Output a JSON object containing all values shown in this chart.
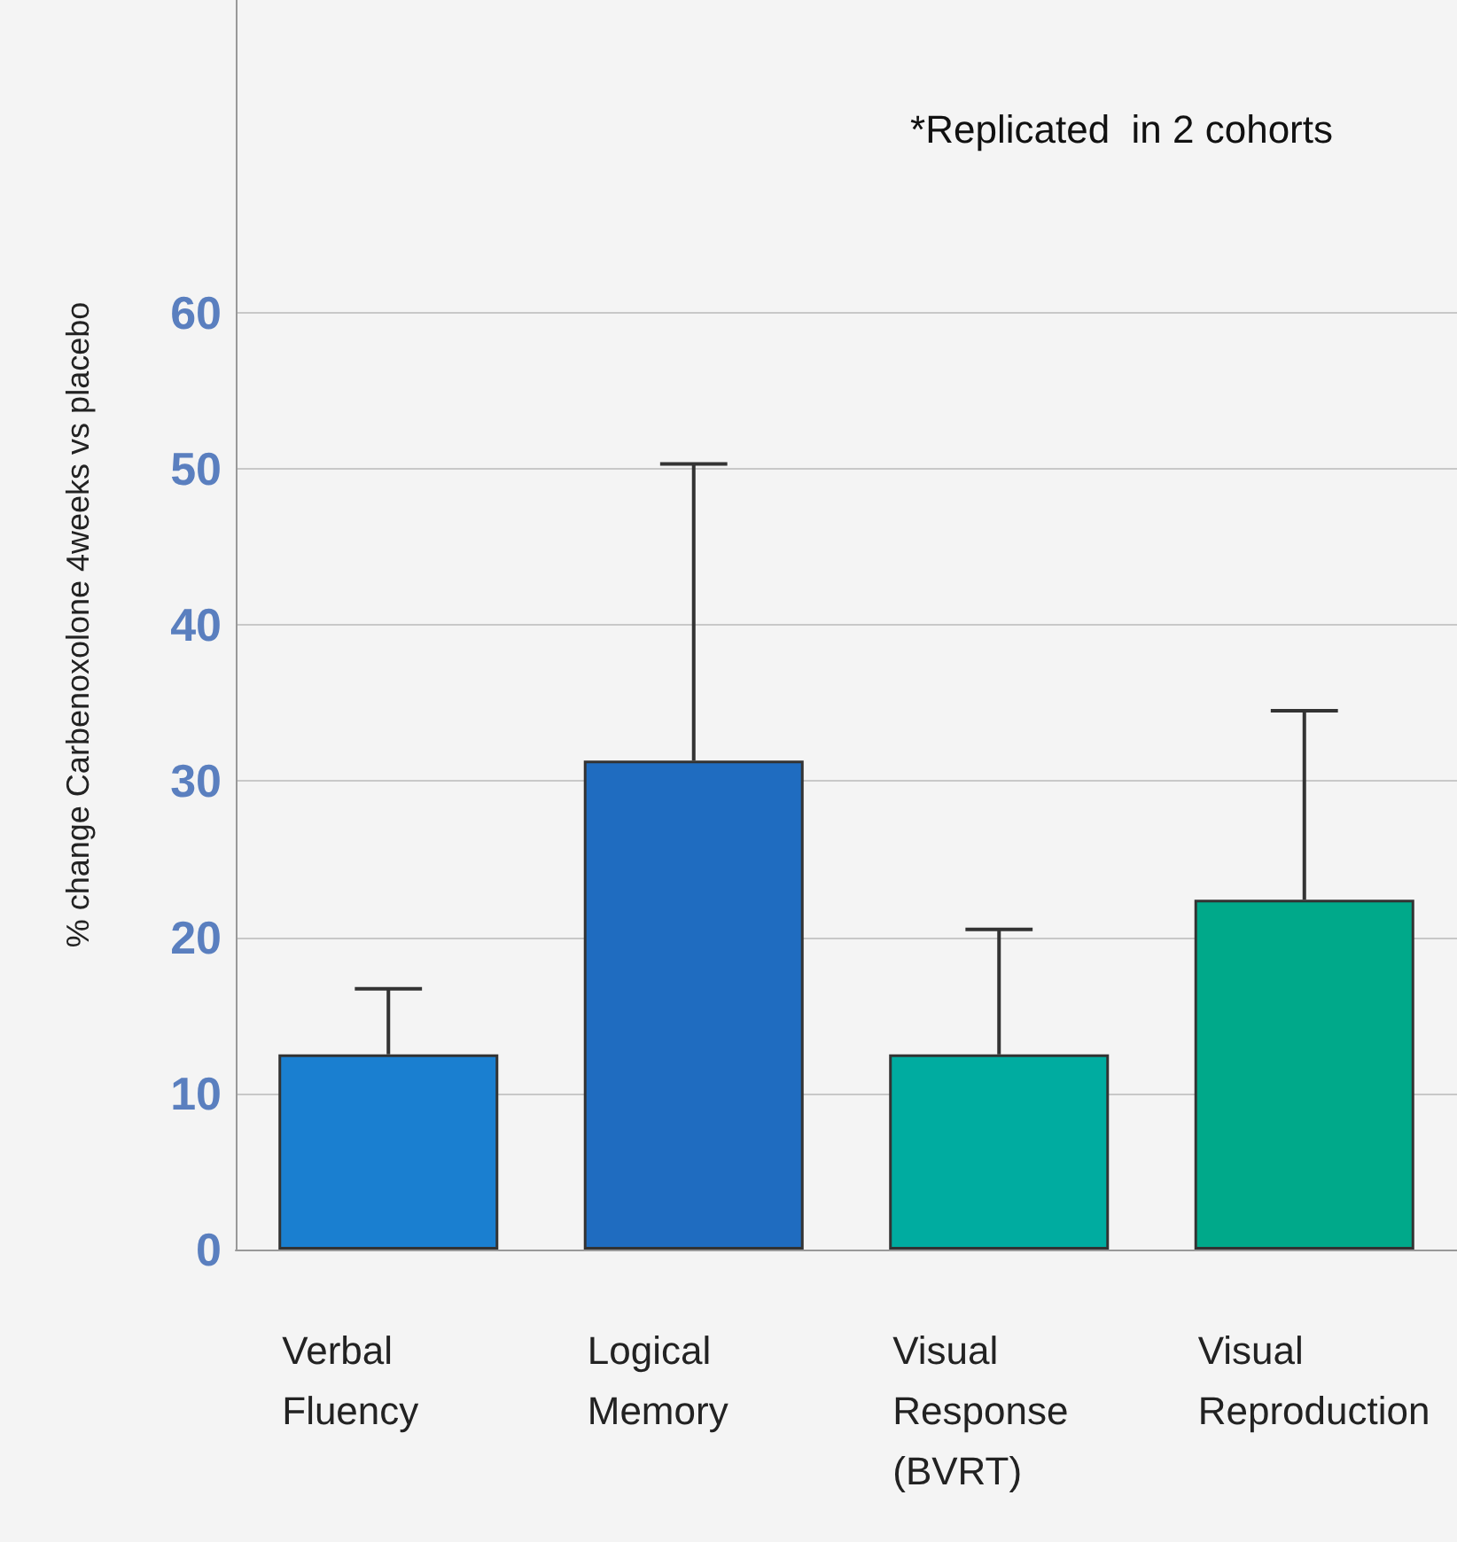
{
  "chart_data": {
    "type": "bar",
    "ylabel": "% change Carbenoxolone 4weeks vs placebo",
    "annotations": [
      "*Replicated  in 2 cohorts"
    ],
    "categories": [
      "Verbal\nFluency",
      "Logical\nMemory",
      "Visual\nResponse\n(BVRT)",
      "Visual\nReproduction"
    ],
    "values": [
      12.5,
      31.3,
      12.5,
      22.4
    ],
    "colors": [
      "#1a7fd0",
      "#1f6cc0",
      "#00aca0",
      "#00a98a"
    ],
    "errors": [
      [
        12.5,
        16.7
      ],
      [
        31.3,
        50.3
      ],
      [
        12.5,
        20.5
      ],
      [
        22.4,
        34.5
      ]
    ],
    "ylim": [
      0,
      80
    ],
    "yticks": [
      0,
      10,
      20,
      30,
      40,
      50,
      60
    ],
    "grid": "y"
  }
}
